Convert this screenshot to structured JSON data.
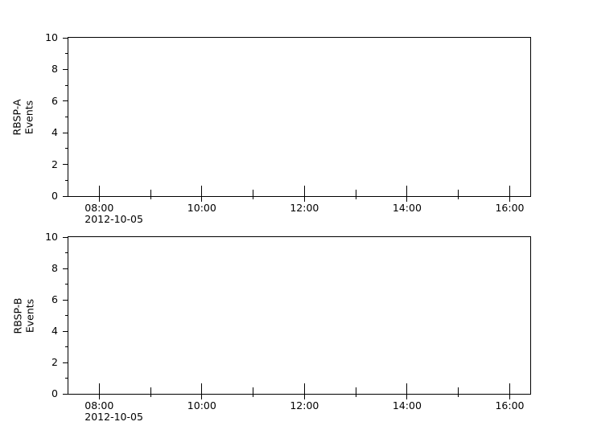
{
  "figure": {
    "background_color": "#ffffff",
    "axis_color": "#000000",
    "text_color": "#000000"
  },
  "chart_data": [
    {
      "type": "line",
      "title": "",
      "xlabel": "",
      "ylabel_lines": [
        "RBSP-A",
        "Events"
      ],
      "y_axis": {
        "min": 0,
        "max": 10,
        "major_ticks": [
          0,
          2,
          4,
          6,
          8,
          10
        ],
        "minor_ticks": [
          1,
          3,
          5,
          7,
          9
        ]
      },
      "x_axis": {
        "start_hour": 7.4,
        "end_hour": 16.4,
        "major_ticks": [
          {
            "hour": 8,
            "label": "08:00"
          },
          {
            "hour": 10,
            "label": "10:00"
          },
          {
            "hour": 12,
            "label": "12:00"
          },
          {
            "hour": 14,
            "label": "14:00"
          },
          {
            "hour": 16,
            "label": "16:00"
          }
        ],
        "minor_tick_hours": [
          9,
          11,
          13,
          15
        ],
        "date_label": "2012-10-05",
        "date_under_hour": 8
      },
      "series": []
    },
    {
      "type": "line",
      "title": "",
      "xlabel": "",
      "ylabel_lines": [
        "RBSP-B",
        "Events"
      ],
      "y_axis": {
        "min": 0,
        "max": 10,
        "major_ticks": [
          0,
          2,
          4,
          6,
          8,
          10
        ],
        "minor_ticks": [
          1,
          3,
          5,
          7,
          9
        ]
      },
      "x_axis": {
        "start_hour": 7.4,
        "end_hour": 16.4,
        "major_ticks": [
          {
            "hour": 8,
            "label": "08:00"
          },
          {
            "hour": 10,
            "label": "10:00"
          },
          {
            "hour": 12,
            "label": "12:00"
          },
          {
            "hour": 14,
            "label": "14:00"
          },
          {
            "hour": 16,
            "label": "16:00"
          }
        ],
        "minor_tick_hours": [
          9,
          11,
          13,
          15
        ],
        "date_label": "2012-10-05",
        "date_under_hour": 8
      },
      "series": []
    }
  ]
}
